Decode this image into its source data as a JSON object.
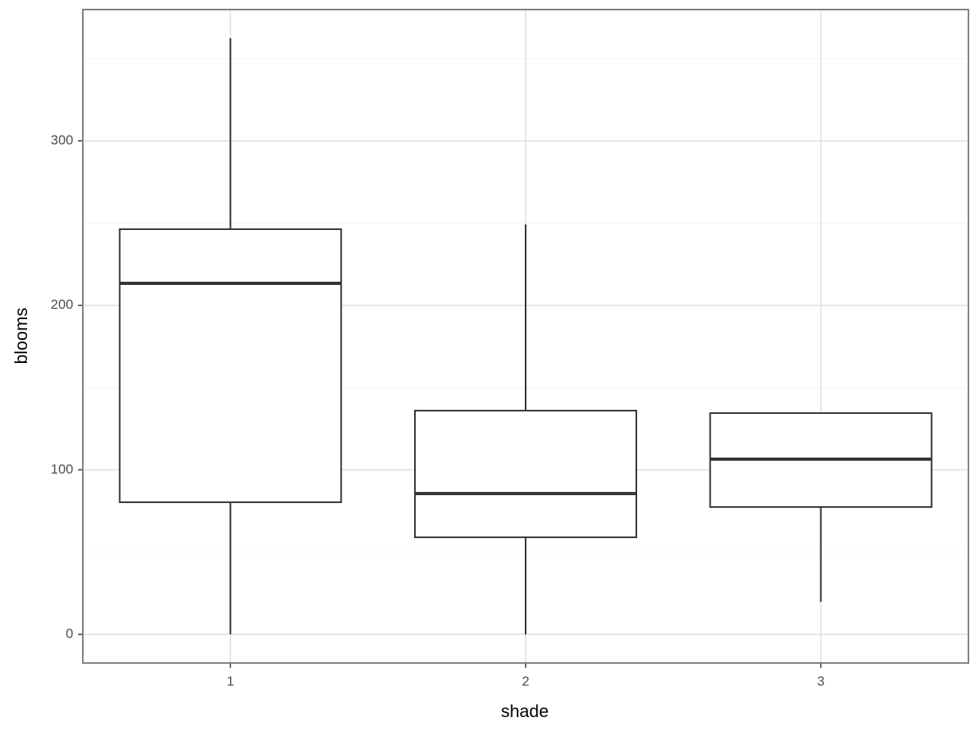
{
  "chart_data": {
    "type": "box",
    "x_label": "shade",
    "y_label": "blooms",
    "categories": [
      "1",
      "2",
      "3"
    ],
    "boxes": [
      {
        "min": 0,
        "q1": 80.3,
        "median": 213.4,
        "q3": 246.3,
        "max": 362.4
      },
      {
        "min": 0,
        "q1": 59,
        "median": 85.6,
        "q3": 136,
        "max": 249.2
      },
      {
        "min": 19.8,
        "q1": 77.4,
        "median": 106.5,
        "q3": 134.5,
        "max": 134.5
      }
    ],
    "box_color": "#333333",
    "fill": "#ffffff",
    "ylim": [
      -17.4,
      379.8
    ],
    "yticks": [
      0,
      100,
      200,
      300
    ],
    "minor_yticks": [
      50,
      150,
      250,
      350
    ],
    "grid": true
  }
}
